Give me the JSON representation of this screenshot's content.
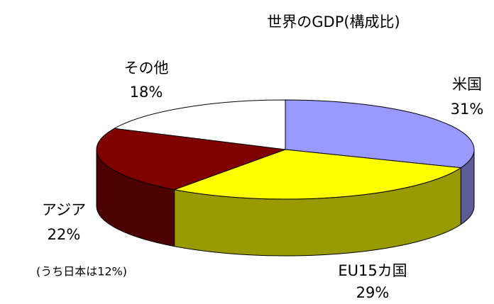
{
  "chart_data": {
    "type": "pie3d",
    "title": "世界のGDP(構成比)",
    "categories": [
      "米国",
      "EU15カ国",
      "アジア",
      "その他"
    ],
    "values": [
      31,
      29,
      22,
      18
    ],
    "value_labels": [
      "31%",
      "29%",
      "22%",
      "18%"
    ],
    "colors": [
      "#9999ff",
      "#ffff00",
      "#800000",
      "#ffffff"
    ],
    "annotation": "(うち日本は12%)"
  }
}
